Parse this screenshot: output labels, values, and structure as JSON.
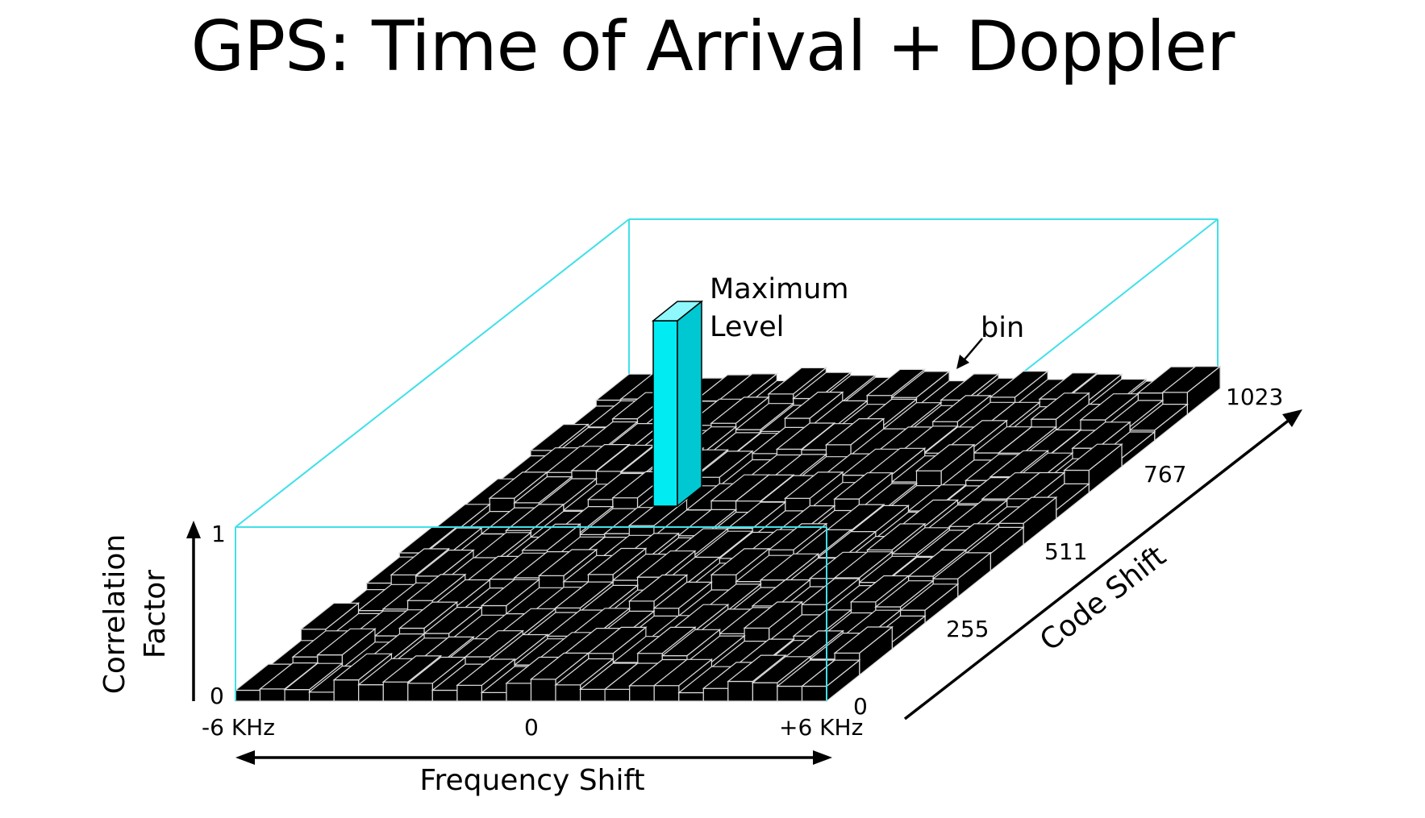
{
  "title": "GPS: Time of Arrival + Doppler",
  "colors": {
    "frame": "#40e0e8",
    "peak_front": "#00ecf2",
    "peak_side": "#00c8d2",
    "peak_top": "#8ff8fc",
    "bin_fill": "#000000",
    "bin_edge": "#dcdcdc",
    "text": "#000000"
  },
  "annotations": {
    "peak_label_line1": "Maximum",
    "peak_label_line2": "Level",
    "bin_label": "bin"
  },
  "axes": {
    "correlation": {
      "label_line1": "Correlation",
      "label_line2": "Factor",
      "tick_min": "0",
      "tick_max": "1"
    },
    "frequency": {
      "label": "Frequency Shift",
      "ticks": [
        "-6 KHz",
        "0",
        "+6 KHz"
      ]
    },
    "code": {
      "label": "Code Shift",
      "ticks": [
        "0",
        "255",
        "511",
        "767",
        "1023"
      ]
    }
  }
}
